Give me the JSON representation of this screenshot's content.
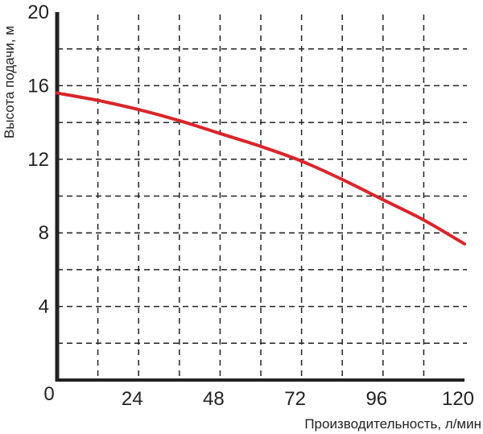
{
  "chart_data": {
    "type": "line",
    "title": "",
    "xlabel": "Производительность, л/мин",
    "ylabel": "Высота подачи, м",
    "xlim": [
      0,
      120
    ],
    "ylim": [
      0,
      20
    ],
    "x_ticks": [
      "0",
      "24",
      "48",
      "72",
      "96",
      "120"
    ],
    "y_ticks": [
      "4",
      "8",
      "12",
      "16",
      "20"
    ],
    "grid": true,
    "grid_style": "dashed",
    "x_grid_step": 12,
    "y_grid_step": 2,
    "series": [
      {
        "color": "#d9252b",
        "x": [
          0,
          12,
          24,
          36,
          48,
          60,
          72,
          84,
          96,
          108,
          120
        ],
        "y": [
          15.6,
          15.2,
          14.7,
          14.1,
          13.4,
          12.7,
          11.9,
          10.9,
          9.8,
          8.7,
          7.4
        ]
      }
    ]
  }
}
